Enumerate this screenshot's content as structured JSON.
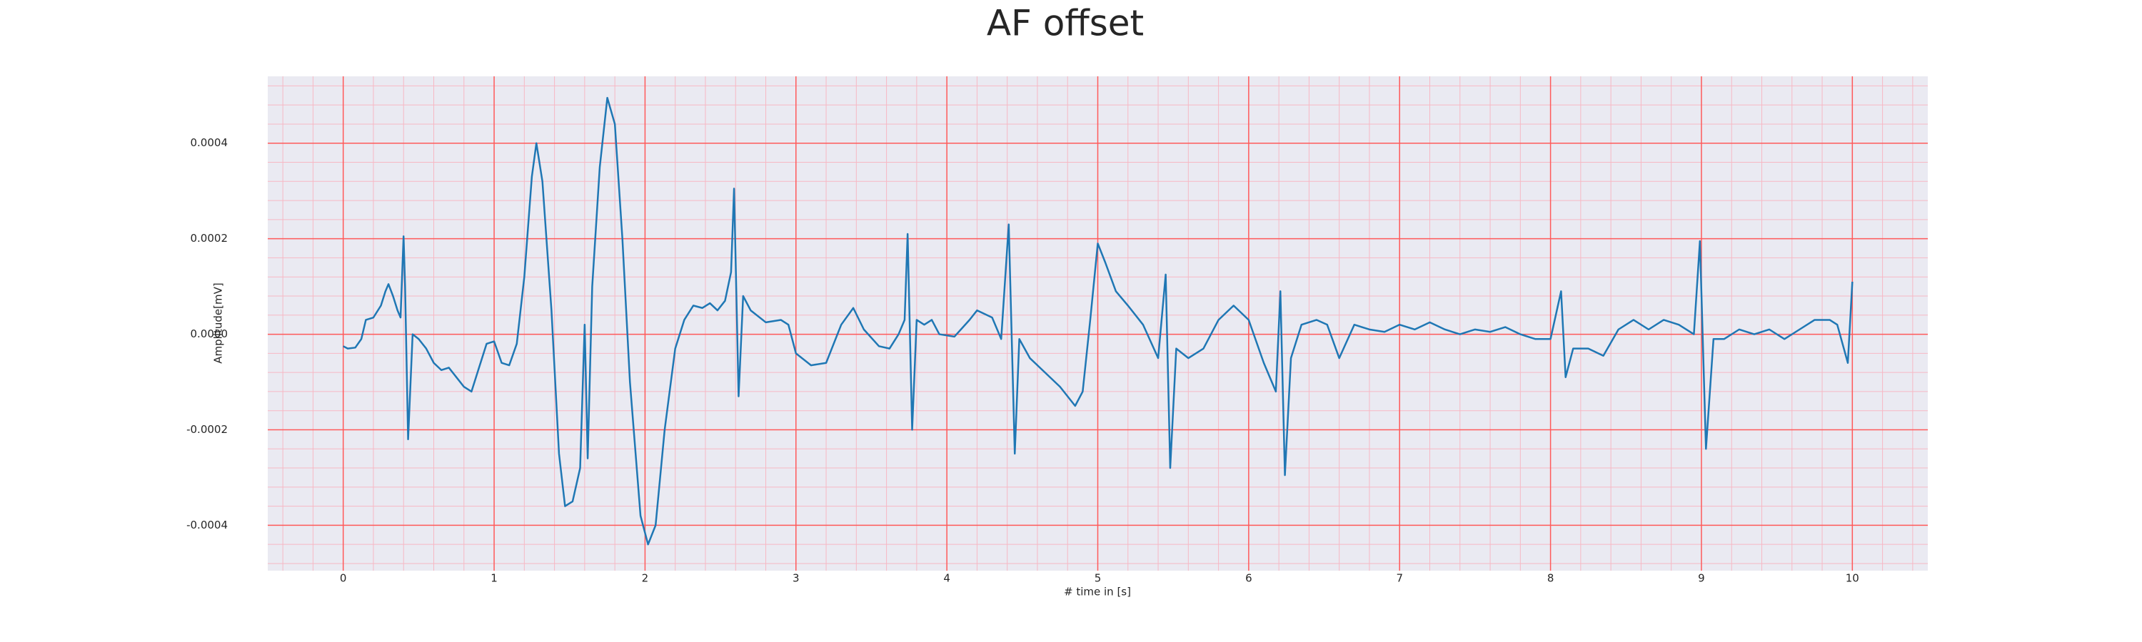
{
  "chart_data": {
    "type": "line",
    "title": "AF offset",
    "x_label": "# time in [s]",
    "y_label": "Amplitude[mV]",
    "color": "#1f77b4",
    "grid": true,
    "grid_color": "#ff5a5a",
    "minor_grid": true,
    "minor_grid_color": "#f7b8c4",
    "minor_grid_divisions": 5,
    "background": "#eaeaf2",
    "xlim": [
      -0.5,
      10.5
    ],
    "xticks": [
      0,
      1,
      2,
      3,
      4,
      5,
      6,
      7,
      8,
      9,
      10
    ],
    "ylim": [
      -0.000495,
      0.00054
    ],
    "yticks": [
      -0.0004,
      -0.0002,
      {
        "value": 0,
        "label": "0.0000"
      },
      0.0002,
      0.0004
    ],
    "x": [
      0,
      0.03,
      0.08,
      0.12,
      0.15,
      0.2,
      0.25,
      0.28,
      0.3,
      0.33,
      0.36,
      0.38,
      0.4,
      0.41,
      0.43,
      0.46,
      0.5,
      0.55,
      0.6,
      0.65,
      0.7,
      0.75,
      0.8,
      0.85,
      0.9,
      0.95,
      1.0,
      1.05,
      1.1,
      1.15,
      1.2,
      1.25,
      1.28,
      1.32,
      1.38,
      1.43,
      1.47,
      1.52,
      1.57,
      1.6,
      1.62,
      1.65,
      1.7,
      1.75,
      1.8,
      1.85,
      1.9,
      1.97,
      2.02,
      2.07,
      2.13,
      2.2,
      2.26,
      2.32,
      2.38,
      2.43,
      2.48,
      2.53,
      2.57,
      2.59,
      2.62,
      2.65,
      2.7,
      2.8,
      2.9,
      2.95,
      3.0,
      3.1,
      3.2,
      3.3,
      3.38,
      3.45,
      3.55,
      3.62,
      3.68,
      3.72,
      3.74,
      3.77,
      3.8,
      3.85,
      3.9,
      3.95,
      4.05,
      4.15,
      4.2,
      4.3,
      4.36,
      4.41,
      4.45,
      4.48,
      4.55,
      4.65,
      4.75,
      4.85,
      4.9,
      4.95,
      5.0,
      5.05,
      5.12,
      5.2,
      5.3,
      5.4,
      5.45,
      5.48,
      5.52,
      5.6,
      5.7,
      5.8,
      5.9,
      6.0,
      6.1,
      6.18,
      6.21,
      6.24,
      6.28,
      6.35,
      6.45,
      6.52,
      6.6,
      6.7,
      6.8,
      6.9,
      7.0,
      7.1,
      7.2,
      7.3,
      7.4,
      7.5,
      7.6,
      7.7,
      7.8,
      7.9,
      8.0,
      8.07,
      8.1,
      8.15,
      8.25,
      8.35,
      8.45,
      8.55,
      8.65,
      8.75,
      8.85,
      8.95,
      8.99,
      9.03,
      9.08,
      9.15,
      9.25,
      9.35,
      9.45,
      9.55,
      9.65,
      9.75,
      9.85,
      9.9,
      9.97,
      10.0
    ],
    "values": [
      -2.5e-05,
      -3e-05,
      -2.8e-05,
      -1e-05,
      3e-05,
      3.5e-05,
      6e-05,
      9e-05,
      0.000105,
      8e-05,
      5e-05,
      3.5e-05,
      0.000205,
      0.0001,
      -0.00022,
      0,
      -1e-05,
      -3e-05,
      -6e-05,
      -7.5e-05,
      -7e-05,
      -9e-05,
      -0.00011,
      -0.00012,
      -7e-05,
      -2e-05,
      -1.5e-05,
      -6e-05,
      -6.5e-05,
      -2e-05,
      0.00012,
      0.00033,
      0.0004,
      0.00032,
      5e-05,
      -0.00025,
      -0.00036,
      -0.00035,
      -0.00028,
      2e-05,
      -0.00026,
      0.0001,
      0.00035,
      0.000495,
      0.00044,
      0.0002,
      -0.0001,
      -0.00038,
      -0.00044,
      -0.0004,
      -0.0002,
      -3e-05,
      3e-05,
      6e-05,
      5.5e-05,
      6.5e-05,
      5e-05,
      7e-05,
      0.00013,
      0.000305,
      -0.00013,
      8e-05,
      5e-05,
      2.5e-05,
      3e-05,
      2e-05,
      -4e-05,
      -6.5e-05,
      -6e-05,
      2e-05,
      5.5e-05,
      1e-05,
      -2.5e-05,
      -3e-05,
      0,
      3e-05,
      0.00021,
      -0.0002,
      3e-05,
      2e-05,
      3e-05,
      0,
      -5e-06,
      3e-05,
      5e-05,
      3.5e-05,
      -1e-05,
      0.00023,
      -0.00025,
      -1e-05,
      -5e-05,
      -8e-05,
      -0.00011,
      -0.00015,
      -0.00012,
      3e-05,
      0.00019,
      0.00015,
      9e-05,
      6e-05,
      2e-05,
      -5e-05,
      0.000125,
      -0.00028,
      -3e-05,
      -5e-05,
      -3e-05,
      3e-05,
      6e-05,
      3e-05,
      -6e-05,
      -0.00012,
      9e-05,
      -0.000295,
      -5e-05,
      2e-05,
      3e-05,
      2e-05,
      -5e-05,
      2e-05,
      1e-05,
      5e-06,
      2e-05,
      1e-05,
      2.5e-05,
      1e-05,
      0,
      1e-05,
      5e-06,
      1.5e-05,
      0,
      -1e-05,
      -1e-05,
      9e-05,
      -9e-05,
      -3e-05,
      -3e-05,
      -4.5e-05,
      1e-05,
      3e-05,
      1e-05,
      3e-05,
      2e-05,
      0,
      0.000195,
      -0.00024,
      -1e-05,
      -1e-05,
      1e-05,
      0,
      1e-05,
      -1e-05,
      1e-05,
      3e-05,
      3e-05,
      2e-05,
      -6e-05,
      0.00011
    ]
  }
}
